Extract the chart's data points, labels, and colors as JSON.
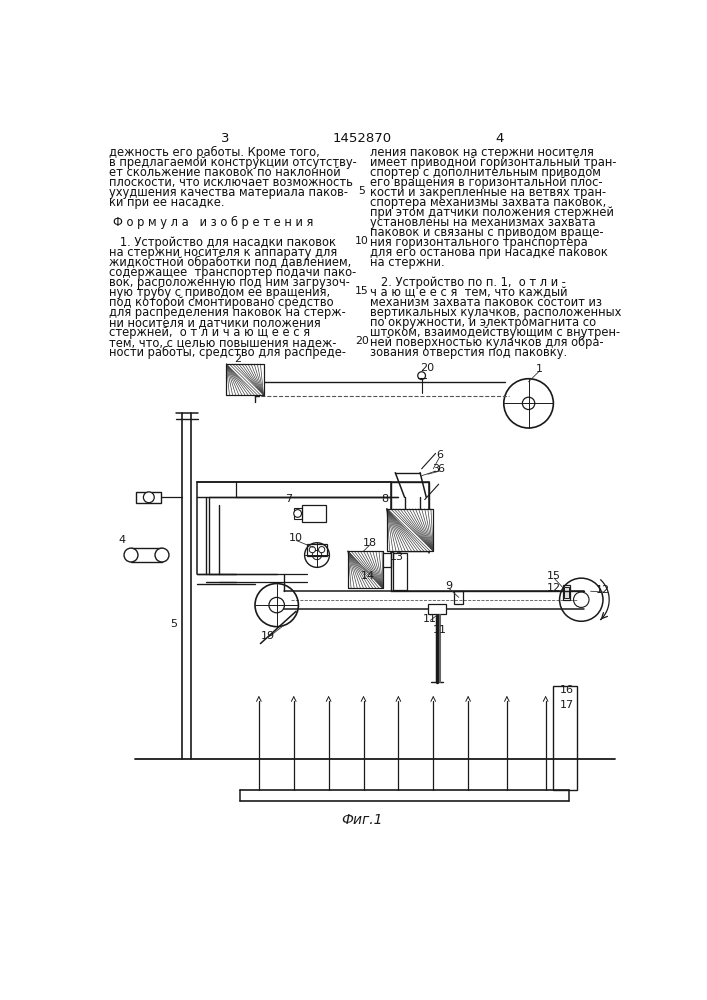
{
  "page_width": 7.07,
  "page_height": 10.0,
  "bg_color": "#ffffff",
  "header_num_left": "3",
  "header_patent": "1452870",
  "header_num_right": "4",
  "left_col_lines": [
    "дежность его работы. Кроме того,",
    "в предлагаемой конструкции отсутству-",
    "ет скольжение паковок по наклонной",
    "плоскости, что исключает возможность",
    "ухудшения качества материала паков-",
    "ки при ее насадке.",
    "",
    "Ф о р м у л а   и з о б р е т е н и я",
    "",
    "   1. Устройство для насадки паковок",
    "на стержни носителя к аппарату для",
    "жидкостной обработки под давлением,",
    "содержащее  транспортер подачи пако-",
    "вок, расположенную под ним загрузоч-",
    "ную трубу с приводом ее вращения,",
    "под которой смонтировано средство",
    "для распределения паковок на стерж-",
    "ни носителя и датчики положения",
    "стержней,  о т л и ч а ю щ е е с я",
    "тем, что, с целью повышения надеж-",
    "ности работы, средство для распреде-"
  ],
  "right_col_lines": [
    "ления паковок на стержни носителя",
    "имеет приводной горизонтальный тран-",
    "спортер с дополнительным приводом",
    "его вращения в горизонтальной плос-",
    "кости и закрепленные на ветвях тран-",
    "спортера механизмы захвата паковок,",
    "при этом датчики положения стержней",
    "установлены на механизмах захвата",
    "паковок и связаны с приводом враще-",
    "ния горизонтального транспортера",
    "для его останова при насадке паковок",
    "на стержни.",
    "",
    "   2. Устройство по п. 1,  о т л и -",
    "ч а ю щ е е с я  тем, что каждый",
    "механизм захвата паковок состоит из",
    "вертикальных кулачков, расположенных",
    "по окружности, и электромагнита со",
    "штоком, взаимодействующим с внутрен-",
    "ней поверхностью кулачков для обра-",
    "зования отверстия под паковку."
  ],
  "line_numbers": [
    [
      5,
      4
    ],
    [
      10,
      9
    ],
    [
      15,
      14
    ],
    [
      20,
      19
    ]
  ],
  "formula_line": 7,
  "caption": "Фиг.1",
  "text_color": "#111111",
  "font_size_main": 8.3,
  "font_size_header": 9.5
}
